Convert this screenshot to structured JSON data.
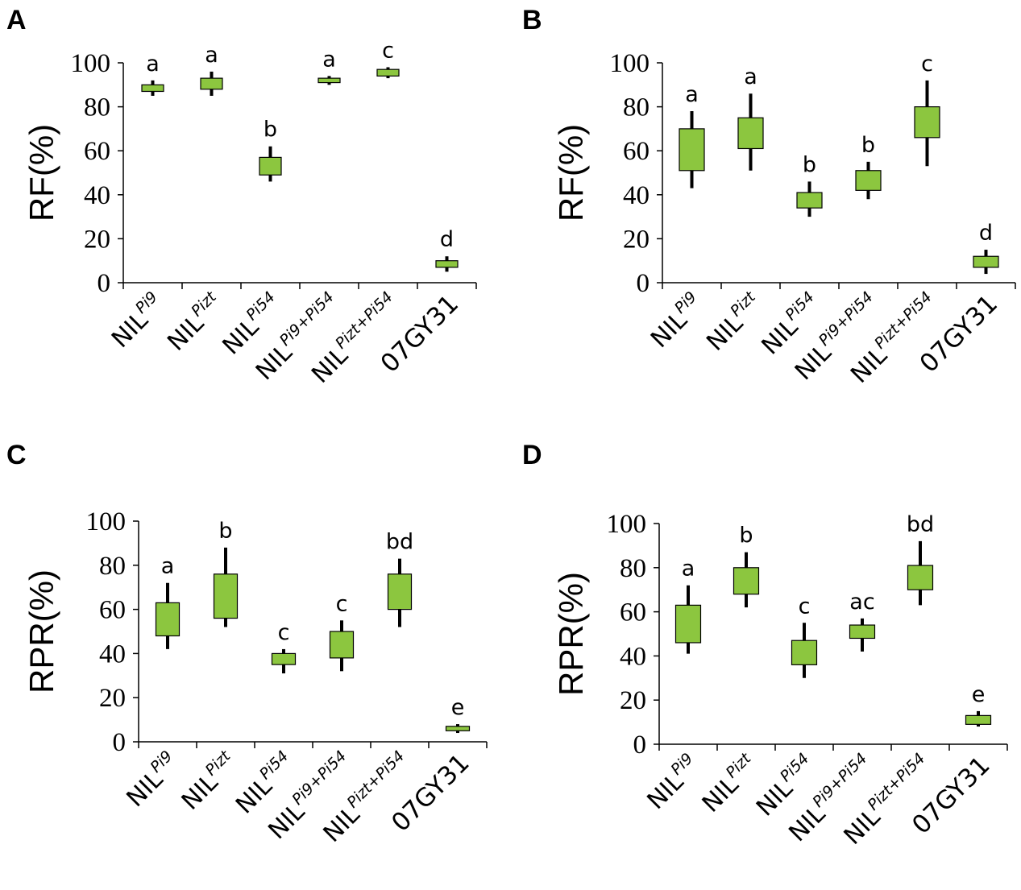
{
  "figure": {
    "box_fill": "#8cc63f",
    "box_stroke": "#000000"
  },
  "chart_data": [
    {
      "panel": "A",
      "type": "box",
      "ylabel": "RF(%)",
      "ylim": [
        0,
        100
      ],
      "yticks": [
        0,
        20,
        40,
        60,
        80,
        100
      ],
      "categories": [
        {
          "base": "NIL",
          "sup": "Pi9"
        },
        {
          "base": "NIL",
          "sup": "Pizt"
        },
        {
          "base": "NIL",
          "sup": "Pi54"
        },
        {
          "base": "NIL",
          "sup": "Pi9+Pi54"
        },
        {
          "base": "NIL",
          "sup": "Pizt+Pi54"
        },
        {
          "base": "07GY31",
          "sup": ""
        }
      ],
      "boxes": [
        {
          "whisker_low": 85,
          "q1": 87,
          "q3": 90,
          "whisker_high": 92,
          "letter": "a"
        },
        {
          "whisker_low": 85,
          "q1": 88,
          "q3": 93,
          "whisker_high": 96,
          "letter": "a"
        },
        {
          "whisker_low": 46,
          "q1": 49,
          "q3": 57,
          "whisker_high": 62,
          "letter": "b"
        },
        {
          "whisker_low": 90,
          "q1": 91,
          "q3": 93,
          "whisker_high": 94,
          "letter": "a"
        },
        {
          "whisker_low": 93,
          "q1": 94,
          "q3": 97,
          "whisker_high": 98,
          "letter": "c"
        },
        {
          "whisker_low": 5,
          "q1": 7,
          "q3": 10,
          "whisker_high": 12,
          "letter": "d"
        }
      ]
    },
    {
      "panel": "B",
      "type": "box",
      "ylabel": "RF(%)",
      "ylim": [
        0,
        100
      ],
      "yticks": [
        0,
        20,
        40,
        60,
        80,
        100
      ],
      "categories": [
        {
          "base": "NIL",
          "sup": "Pi9"
        },
        {
          "base": "NIL",
          "sup": "Pizt"
        },
        {
          "base": "NIL",
          "sup": "Pi54"
        },
        {
          "base": "NIL",
          "sup": "Pi9+Pi54"
        },
        {
          "base": "NIL",
          "sup": "Pizt+Pi54"
        },
        {
          "base": "07GY31",
          "sup": ""
        }
      ],
      "boxes": [
        {
          "whisker_low": 43,
          "q1": 51,
          "q3": 70,
          "whisker_high": 78,
          "letter": "a"
        },
        {
          "whisker_low": 51,
          "q1": 61,
          "q3": 75,
          "whisker_high": 86,
          "letter": "a"
        },
        {
          "whisker_low": 30,
          "q1": 34,
          "q3": 41,
          "whisker_high": 46,
          "letter": "b"
        },
        {
          "whisker_low": 38,
          "q1": 42,
          "q3": 51,
          "whisker_high": 55,
          "letter": "b"
        },
        {
          "whisker_low": 53,
          "q1": 66,
          "q3": 80,
          "whisker_high": 92,
          "letter": "c"
        },
        {
          "whisker_low": 4,
          "q1": 7,
          "q3": 12,
          "whisker_high": 15,
          "letter": "d"
        }
      ]
    },
    {
      "panel": "C",
      "type": "box",
      "ylabel": "RPR(%)",
      "ylim": [
        0,
        100
      ],
      "yticks": [
        0,
        20,
        40,
        60,
        80,
        100
      ],
      "categories": [
        {
          "base": "NIL",
          "sup": "Pi9"
        },
        {
          "base": "NIL",
          "sup": "Pizt"
        },
        {
          "base": "NIL",
          "sup": "Pi54"
        },
        {
          "base": "NIL",
          "sup": "Pi9+Pi54"
        },
        {
          "base": "NIL",
          "sup": "Pizt+Pi54"
        },
        {
          "base": "07GY31",
          "sup": ""
        }
      ],
      "boxes": [
        {
          "whisker_low": 42,
          "q1": 48,
          "q3": 63,
          "whisker_high": 72,
          "letter": "a"
        },
        {
          "whisker_low": 52,
          "q1": 56,
          "q3": 76,
          "whisker_high": 88,
          "letter": "b"
        },
        {
          "whisker_low": 31,
          "q1": 35,
          "q3": 40,
          "whisker_high": 42,
          "letter": "c"
        },
        {
          "whisker_low": 32,
          "q1": 38,
          "q3": 50,
          "whisker_high": 55,
          "letter": "c"
        },
        {
          "whisker_low": 52,
          "q1": 60,
          "q3": 76,
          "whisker_high": 83,
          "letter": "bd"
        },
        {
          "whisker_low": 4,
          "q1": 5,
          "q3": 7,
          "whisker_high": 8,
          "letter": "e"
        }
      ]
    },
    {
      "panel": "D",
      "type": "box",
      "ylabel": "RPR(%)",
      "ylim": [
        0,
        100
      ],
      "yticks": [
        0,
        20,
        40,
        60,
        80,
        100
      ],
      "categories": [
        {
          "base": "NIL",
          "sup": "Pi9"
        },
        {
          "base": "NIL",
          "sup": "Pizt"
        },
        {
          "base": "NIL",
          "sup": "Pi54"
        },
        {
          "base": "NIL",
          "sup": "Pi9+Pi54"
        },
        {
          "base": "NIL",
          "sup": "Pizt+Pi54"
        },
        {
          "base": "07GY31",
          "sup": ""
        }
      ],
      "boxes": [
        {
          "whisker_low": 41,
          "q1": 46,
          "q3": 63,
          "whisker_high": 72,
          "letter": "a"
        },
        {
          "whisker_low": 62,
          "q1": 68,
          "q3": 80,
          "whisker_high": 87,
          "letter": "b"
        },
        {
          "whisker_low": 30,
          "q1": 36,
          "q3": 47,
          "whisker_high": 55,
          "letter": "c"
        },
        {
          "whisker_low": 42,
          "q1": 48,
          "q3": 54,
          "whisker_high": 57,
          "letter": "ac"
        },
        {
          "whisker_low": 63,
          "q1": 70,
          "q3": 81,
          "whisker_high": 92,
          "letter": "bd"
        },
        {
          "whisker_low": 8,
          "q1": 9,
          "q3": 13,
          "whisker_high": 15,
          "letter": "e"
        }
      ]
    }
  ]
}
